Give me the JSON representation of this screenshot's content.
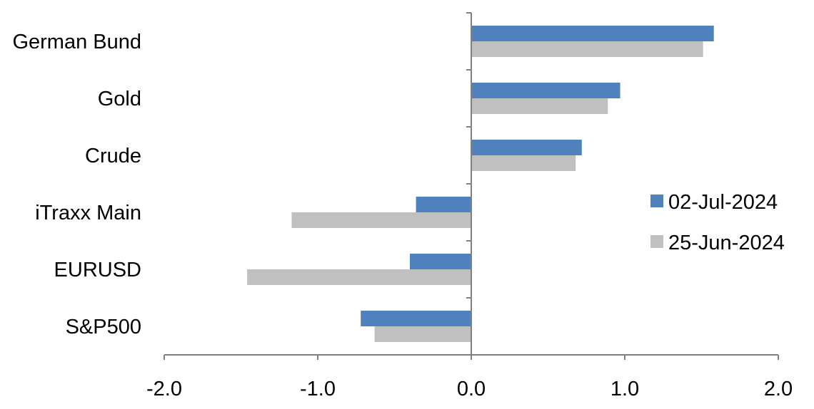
{
  "chart_data": {
    "type": "bar",
    "orientation": "horizontal",
    "categories": [
      "German Bund",
      "Gold",
      "Crude",
      "iTraxx Main",
      "EURUSD",
      "S&P500"
    ],
    "series": [
      {
        "name": "02-Jul-2024",
        "color": "#4F81BD",
        "values": [
          1.58,
          0.97,
          0.72,
          -0.36,
          -0.4,
          -0.72
        ]
      },
      {
        "name": "25-Jun-2024",
        "color": "#C0C0C0",
        "values": [
          1.51,
          0.89,
          0.68,
          -1.17,
          -1.46,
          -0.63
        ]
      }
    ],
    "xlim": [
      -2.0,
      2.0
    ],
    "xticks": [
      "-2.0",
      "-1.0",
      "0.0",
      "1.0",
      "2.0"
    ],
    "xtick_values": [
      -2,
      -1,
      0,
      1,
      2
    ],
    "grid": false,
    "legend_position": "right"
  }
}
